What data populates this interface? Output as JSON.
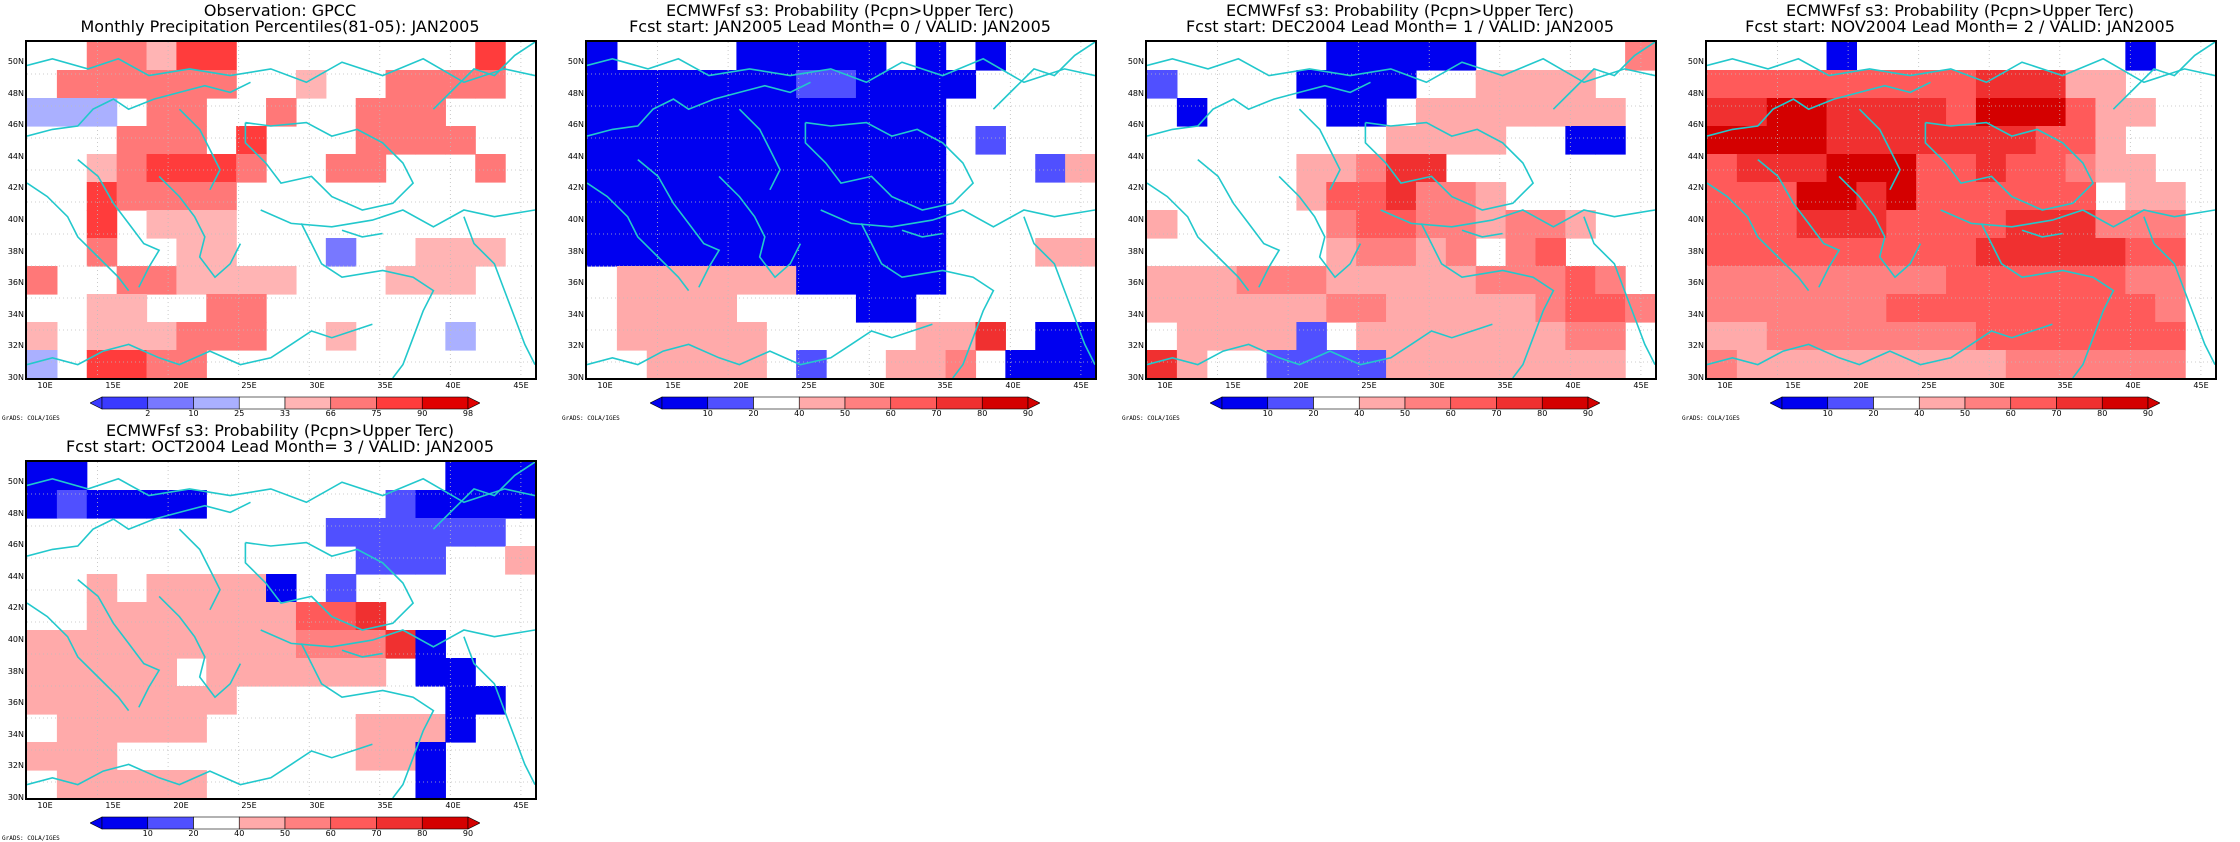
{
  "credit": "GrADS: COLA/IGES",
  "lat_labels": [
    "50N",
    "48N",
    "46N",
    "44N",
    "42N",
    "40N",
    "38N",
    "36N",
    "34N",
    "32N",
    "30N"
  ],
  "lon_labels": [
    "10E",
    "15E",
    "20E",
    "25E",
    "30E",
    "35E",
    "40E",
    "45E"
  ],
  "colors": {
    "obs_palette": {
      "-3": "#3a3aff",
      "-2": "#7878ff",
      "-1": "#aab0ff",
      "0": "#ffffff",
      "1": "#ffb4b4",
      "2": "#ff7878",
      "3": "#ff3c3c",
      "4": "#e00000"
    },
    "prob_palette": {
      "-2": "#0000f0",
      "-1": "#5050ff",
      "0": "#ffffff",
      "1": "#ffaaaa",
      "2": "#ff8080",
      "3": "#ff5a5a",
      "4": "#f03030",
      "5": "#d40000"
    },
    "coast": "#22c8cc",
    "grid": "#bdbdbd"
  },
  "panels": [
    {
      "id": "obs",
      "title1": "Observation: GPCC",
      "title2": "Monthly Precipitation Percentiles(81-05): JAN2005",
      "palette": "obs_palette",
      "colorbar_ticks": [
        "2",
        "10",
        "25",
        "33",
        "66",
        "75",
        "90",
        "98"
      ],
      "grid": [
        "0022133000000003-",
        "0222222001002222-",
        "-1-1-1022002002220",
        "0002220300022220",
        "0012333200220002",
        "0032222000000000",
        "0030111000000000",
        "0020011000-2001110",
        "20022111100011100",
        "0011002200000000",
        "10111222001000-10",
        "-1033220000000000"
      ]
    },
    {
      "id": "lead0",
      "title1": "ECMWFsf s3: Probability (Pcpn>Upper Terc)",
      "title2": "Fcst start: JAN2005   Lead Month= 0 / VALID: JAN2005",
      "palette": "prob_palette",
      "colorbar_ticks": [
        "10",
        "20",
        "40",
        "50",
        "60",
        "70",
        "80",
        "90"
      ],
      "grid": [
        "-20000-2-2-2-2-20-20-200000",
        "-2-2-2-2-2-2-2-1-1-2-2-2-20000",
        "-2-2-2-2-2-2-2-2-2-2-2-200000",
        "-2-2-2-2-2-2-2-2-2-2-2-20-10000",
        "-2-2-2-2-2-2-2-2-2-2-2-2000-11",
        "-2-2-2-2-2-2-2-2-2-2-2-200000",
        "-2-2-2-2-2-2-2-2-2-2-2-20000",
        "-2-2-2-2-2-2-2-2-2-2-2-200011",
        "0111111-2-2-2-2-2000001",
        "011110000-2-2000000",
        "011111000001140-2-2-2",
        "0011110-1001120-2-2-2"
      ]
    },
    {
      "id": "lead1",
      "title1": "ECMWFsf s3: Probability (Pcpn>Upper Terc)",
      "title2": "Fcst start: DEC2004   Lead Month= 1 / VALID: JAN2005",
      "palette": "prob_palette",
      "colorbar_ticks": [
        "10",
        "20",
        "40",
        "50",
        "60",
        "70",
        "80",
        "90"
      ],
      "grid": [
        "000000-2-2-2-2-20000020",
        "-10000-2-2-2-20011110",
        "0-20000-2-2011111110",
        "00000000111100-2-20",
        "00000112440000000",
        "000001334221000",
        "10000023322122100",
        "000000122120230000",
        "1112221111122232",
        "11111122111112332",
        "01111-10111111122",
        "4100-1-1-1-111111111"
      ]
    },
    {
      "id": "lead2",
      "title1": "ECMWFsf s3: Probability (Pcpn>Upper Terc)",
      "title2": "Fcst start: NOV2004   Lead Month= 2 / VALID: JAN2005",
      "palette": "prob_palette",
      "colorbar_ticks": [
        "10",
        "20",
        "40",
        "50",
        "60",
        "70",
        "80",
        "90"
      ],
      "grid": [
        "0000-2000000000-20",
        "3333333334441100",
        "4455444435553110",
        "5555444444433100",
        "3444555334332110",
        "3335545333333011",
        "3334443333444222",
        "3333333334444433",
        "2222222233333322",
        "2222223333333332",
        "1122222223333333",
        "2111111111222222"
      ]
    },
    {
      "id": "lead3",
      "title1": "ECMWFsf s3: Probability (Pcpn>Upper Terc)",
      "title2": "Fcst start: OCT2004   Lead Month= 3 / VALID: JAN2005",
      "palette": "prob_palette",
      "colorbar_ticks": [
        "10",
        "20",
        "40",
        "50",
        "60",
        "70",
        "80",
        "90"
      ],
      "grid": [
        "-2-2000000000000-2-2-2-2",
        "-2-1-2-2-2-2000000-1-2-2-2-2",
        "0000000000-1-1-1-1-1-1",
        "00000000000-1-1-1001",
        "00101111-20-10000000",
        "0011111113340000",
        "1111111112224-200",
        "1111101111110-2-20",
        "11111110000000-2-2",
        "01111100000111-200",
        "1110000000011-2000",
        "0111110000000-2000"
      ]
    }
  ]
}
